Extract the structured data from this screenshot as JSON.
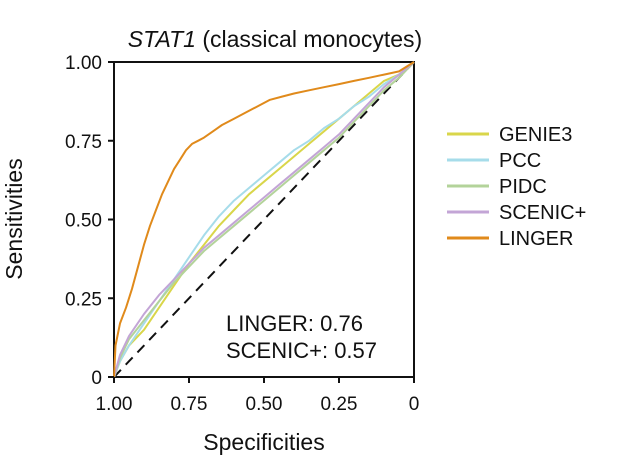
{
  "chart_data": {
    "type": "line",
    "title": {
      "italic": "STAT1",
      "rest": " (classical monocytes)"
    },
    "xlabel": "Specificities",
    "ylabel": "Sensitivities",
    "xlim": [
      1.0,
      0.0
    ],
    "ylim": [
      0.0,
      1.0
    ],
    "x_ticks": [
      {
        "value": 1.0,
        "label": "1.00"
      },
      {
        "value": 0.75,
        "label": "0.75"
      },
      {
        "value": 0.5,
        "label": "0.50"
      },
      {
        "value": 0.25,
        "label": "0.25"
      },
      {
        "value": 0.0,
        "label": "0"
      }
    ],
    "y_ticks": [
      {
        "value": 0.0,
        "label": "0"
      },
      {
        "value": 0.25,
        "label": "0.25"
      },
      {
        "value": 0.5,
        "label": "0.50"
      },
      {
        "value": 0.75,
        "label": "0.75"
      },
      {
        "value": 1.0,
        "label": "1.00"
      }
    ],
    "grid": false,
    "legend_position": "right",
    "reference_line": {
      "style": "dashed",
      "from": [
        1.0,
        0.0
      ],
      "to": [
        0.0,
        1.0
      ]
    },
    "series": [
      {
        "name": "GENIE3",
        "color": "#d9d64a",
        "x": [
          1.0,
          0.98,
          0.95,
          0.9,
          0.85,
          0.8,
          0.75,
          0.7,
          0.65,
          0.6,
          0.55,
          0.5,
          0.45,
          0.4,
          0.35,
          0.3,
          0.25,
          0.2,
          0.15,
          0.1,
          0.05,
          0.0
        ],
        "y": [
          0.0,
          0.05,
          0.1,
          0.15,
          0.22,
          0.29,
          0.36,
          0.42,
          0.48,
          0.53,
          0.58,
          0.62,
          0.66,
          0.7,
          0.74,
          0.78,
          0.82,
          0.86,
          0.9,
          0.94,
          0.96,
          1.0
        ]
      },
      {
        "name": "PCC",
        "color": "#a6dcea",
        "x": [
          1.0,
          0.98,
          0.95,
          0.9,
          0.85,
          0.8,
          0.75,
          0.7,
          0.65,
          0.6,
          0.55,
          0.5,
          0.45,
          0.4,
          0.35,
          0.3,
          0.25,
          0.2,
          0.15,
          0.1,
          0.05,
          0.0
        ],
        "y": [
          0.0,
          0.05,
          0.1,
          0.17,
          0.24,
          0.31,
          0.38,
          0.45,
          0.51,
          0.56,
          0.6,
          0.64,
          0.68,
          0.72,
          0.75,
          0.79,
          0.82,
          0.86,
          0.89,
          0.93,
          0.96,
          1.0
        ]
      },
      {
        "name": "PIDC",
        "color": "#b3d39a",
        "x": [
          1.0,
          0.98,
          0.95,
          0.9,
          0.85,
          0.8,
          0.75,
          0.7,
          0.65,
          0.6,
          0.55,
          0.5,
          0.45,
          0.4,
          0.35,
          0.3,
          0.25,
          0.2,
          0.15,
          0.1,
          0.05,
          0.0
        ],
        "y": [
          0.0,
          0.06,
          0.12,
          0.18,
          0.24,
          0.3,
          0.35,
          0.4,
          0.44,
          0.48,
          0.52,
          0.56,
          0.6,
          0.64,
          0.68,
          0.72,
          0.76,
          0.81,
          0.86,
          0.91,
          0.95,
          1.0
        ]
      },
      {
        "name": "SCENIC+",
        "color": "#c3a5d6",
        "x": [
          1.0,
          0.98,
          0.95,
          0.9,
          0.85,
          0.8,
          0.75,
          0.7,
          0.65,
          0.6,
          0.55,
          0.5,
          0.45,
          0.4,
          0.35,
          0.3,
          0.25,
          0.2,
          0.15,
          0.1,
          0.05,
          0.0
        ],
        "y": [
          0.0,
          0.07,
          0.13,
          0.2,
          0.26,
          0.31,
          0.36,
          0.41,
          0.45,
          0.49,
          0.53,
          0.57,
          0.61,
          0.65,
          0.69,
          0.73,
          0.77,
          0.82,
          0.87,
          0.92,
          0.96,
          1.0
        ]
      },
      {
        "name": "LINGER",
        "color": "#e08a1b",
        "x": [
          1.0,
          0.995,
          0.98,
          0.96,
          0.94,
          0.92,
          0.9,
          0.88,
          0.86,
          0.84,
          0.82,
          0.8,
          0.78,
          0.76,
          0.74,
          0.72,
          0.7,
          0.67,
          0.64,
          0.6,
          0.56,
          0.52,
          0.48,
          0.44,
          0.4,
          0.35,
          0.3,
          0.25,
          0.2,
          0.15,
          0.1,
          0.05,
          0.0
        ],
        "y": [
          0.0,
          0.1,
          0.17,
          0.22,
          0.28,
          0.35,
          0.42,
          0.48,
          0.53,
          0.58,
          0.62,
          0.66,
          0.69,
          0.72,
          0.74,
          0.75,
          0.76,
          0.78,
          0.8,
          0.82,
          0.84,
          0.86,
          0.88,
          0.89,
          0.9,
          0.91,
          0.92,
          0.93,
          0.94,
          0.95,
          0.96,
          0.97,
          1.0
        ]
      }
    ],
    "annotations": [
      "LINGER: 0.76",
      "SCENIC+: 0.57"
    ]
  }
}
